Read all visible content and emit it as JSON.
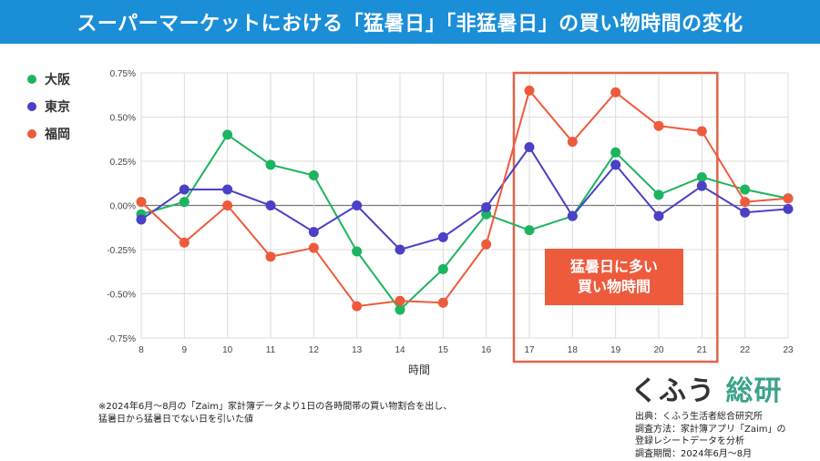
{
  "title": "スーパーマーケットにおける「猛暑日」「非猛暑日」の買い物時間の変化",
  "chart_data": {
    "type": "line",
    "title": "スーパーマーケットにおける「猛暑日」「非猛暑日」の買い物時間の変化",
    "xlabel": "時間",
    "ylabel": "",
    "x": [
      8,
      9,
      10,
      11,
      12,
      13,
      14,
      15,
      16,
      17,
      18,
      19,
      20,
      21,
      22,
      23
    ],
    "ylim": [
      -0.75,
      0.75
    ],
    "yticks": [
      "0.75%",
      "0.50%",
      "0.25%",
      "0.00%",
      "-0.25%",
      "-0.50%",
      "-0.75%"
    ],
    "ytick_values": [
      0.75,
      0.5,
      0.25,
      0,
      -0.25,
      -0.5,
      -0.75
    ],
    "grid": true,
    "legend_placement": "left",
    "series": [
      {
        "name": "大阪",
        "color": "#1db45f",
        "values": [
          -0.05,
          0.02,
          0.4,
          0.23,
          0.17,
          -0.26,
          -0.59,
          -0.36,
          -0.05,
          -0.14,
          -0.06,
          0.3,
          0.06,
          0.16,
          0.09,
          0.04
        ]
      },
      {
        "name": "東京",
        "color": "#4b40c6",
        "values": [
          -0.08,
          0.09,
          0.09,
          0.0,
          -0.15,
          0.0,
          -0.25,
          -0.18,
          -0.01,
          0.33,
          -0.06,
          0.23,
          -0.06,
          0.11,
          -0.04,
          -0.02
        ]
      },
      {
        "name": "福岡",
        "color": "#ee5a3c",
        "values": [
          0.02,
          -0.21,
          0.0,
          -0.29,
          -0.24,
          -0.57,
          -0.54,
          -0.55,
          -0.22,
          0.65,
          0.36,
          0.64,
          0.45,
          0.42,
          0.02,
          0.04
        ]
      }
    ],
    "highlight": {
      "x_range": [
        17,
        21
      ],
      "color": "#e0654a",
      "label_line1": "猛暑日に多い",
      "label_line2": "買い物時間"
    }
  },
  "note_line1": "※2024年6月～8月の「Zaim」家計簿データより1日の各時間帯の買い物割合を出し、",
  "note_line2": "猛暑日から猛暑日でない日を引いた値",
  "logo": {
    "part1": "くふう",
    "part2": "総研"
  },
  "source": [
    "出典：くふう生活者総合研究所",
    "調査方法：家計簿アプリ「Zaim」の",
    "登録レシートデータを分析",
    "調査期間：2024年6月～8月"
  ]
}
